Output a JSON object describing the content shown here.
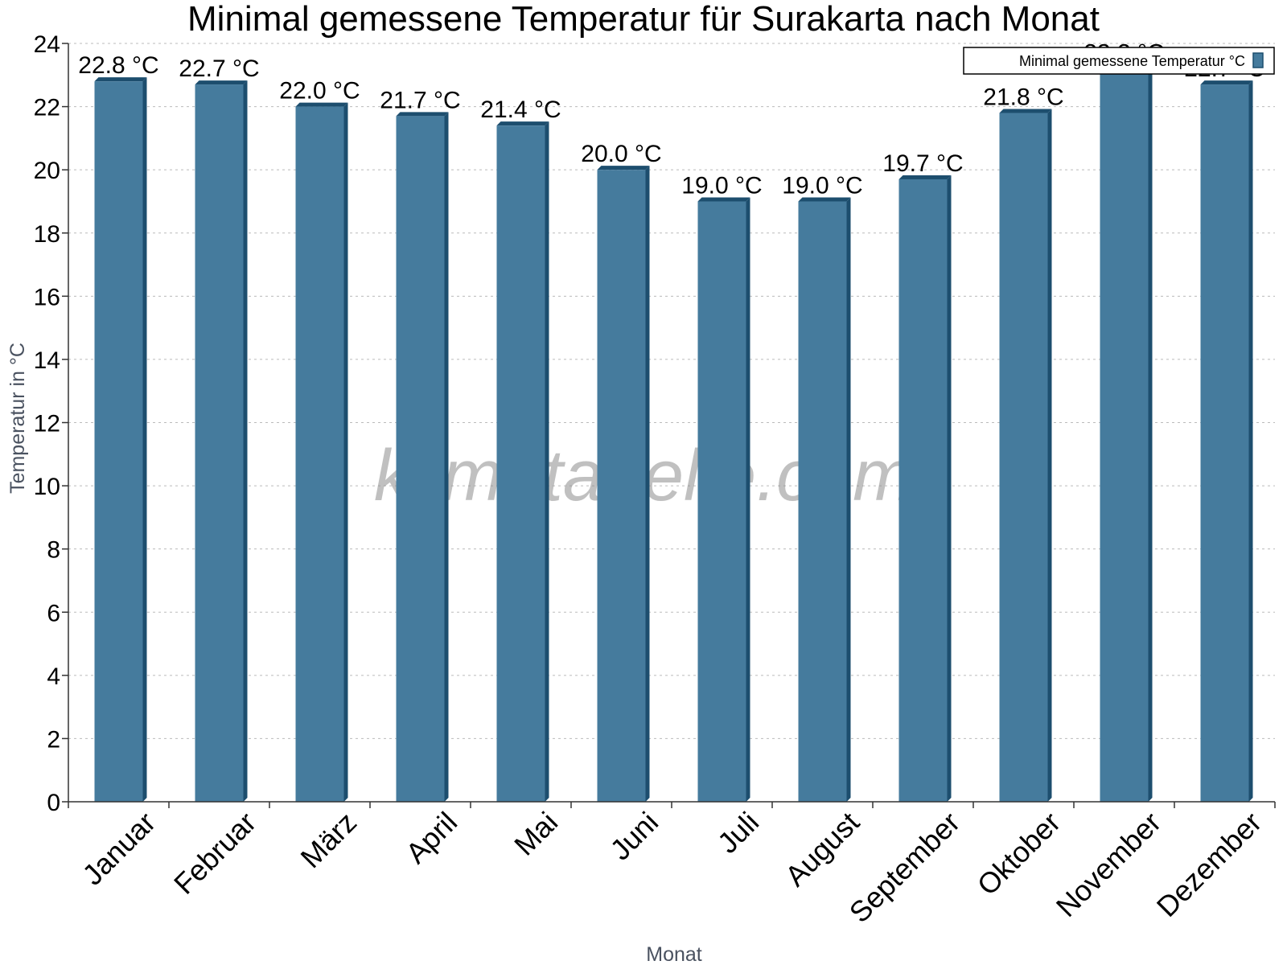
{
  "chart_data": {
    "type": "bar",
    "title": "Minimal gemessene Temperatur für Surakarta nach Monat",
    "xlabel": "Monat",
    "ylabel": "Temperatur in °C",
    "categories": [
      "Januar",
      "Februar",
      "März",
      "April",
      "Mai",
      "Juni",
      "Juli",
      "August",
      "September",
      "Oktober",
      "November",
      "Dezember"
    ],
    "series": [
      {
        "name": "Minimal gemessene Temperatur °C",
        "values": [
          22.8,
          22.7,
          22.0,
          21.7,
          21.4,
          20.0,
          19.0,
          19.0,
          19.7,
          21.8,
          23.2,
          22.7
        ],
        "labels": [
          "22.8 °C",
          "22.7 °C",
          "22.0 °C",
          "21.7 °C",
          "21.4 °C",
          "20.0 °C",
          "19.0 °C",
          "19.0 °C",
          "19.7 °C",
          "21.8 °C",
          "23.2 °C",
          "22.7 °C"
        ]
      }
    ],
    "ylim": [
      0,
      24
    ],
    "yticks": [
      0,
      2,
      4,
      6,
      8,
      10,
      12,
      14,
      16,
      18,
      20,
      22,
      24
    ],
    "grid": true,
    "legend_position": "top-right",
    "watermark": "klimatabelle.com",
    "colors": {
      "bar": "#457b9d",
      "bar_side": "#1d4e6e",
      "grid": "#bbbbbb",
      "axis": "#333333"
    }
  }
}
